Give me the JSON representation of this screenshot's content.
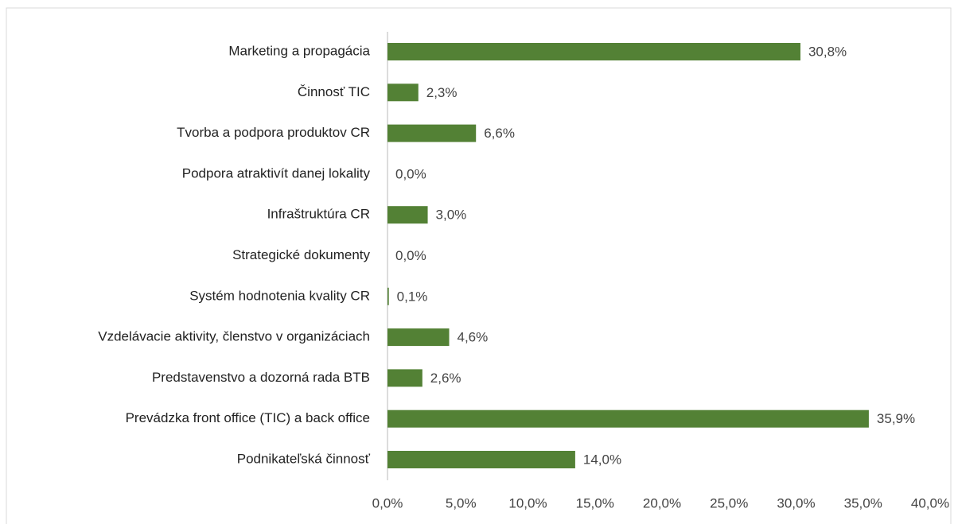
{
  "chart_data": {
    "type": "hbar",
    "categories": [
      "Marketing a propagácia",
      "Činnosť TIC",
      "Tvorba a podpora produktov CR",
      "Podpora atraktivít danej lokality",
      "Infraštruktúra CR",
      "Strategické dokumenty",
      "Systém hodnotenia kvality CR",
      "Vzdelávacie aktivity, členstvo v organizáciach",
      "Predstavenstvo a dozorná rada BTB",
      "Prevádzka front office (TIC) a back office",
      "Podnikateľská činnosť"
    ],
    "values": [
      30.8,
      2.3,
      6.6,
      0.0,
      3.0,
      0.0,
      0.1,
      4.6,
      2.6,
      35.9,
      14.0
    ],
    "value_labels": [
      "30,8%",
      "2,3%",
      "6,6%",
      "0,0%",
      "3,0%",
      "0,0%",
      "0,1%",
      "4,6%",
      "2,6%",
      "35,9%",
      "14,0%"
    ],
    "color": "#538135",
    "xlim": [
      0,
      40
    ],
    "xticks": [
      {
        "value": 0,
        "label": "0,0%"
      },
      {
        "value": 5,
        "label": "5,0%"
      },
      {
        "value": 10,
        "label": "10,0%"
      },
      {
        "value": 15,
        "label": "15,0%"
      },
      {
        "value": 20,
        "label": "20,0%"
      },
      {
        "value": 25,
        "label": "25,0%"
      },
      {
        "value": 30,
        "label": "30,0%"
      },
      {
        "value": 35,
        "label": "35,0%"
      },
      {
        "value": 40,
        "label": "40,0%"
      }
    ]
  }
}
